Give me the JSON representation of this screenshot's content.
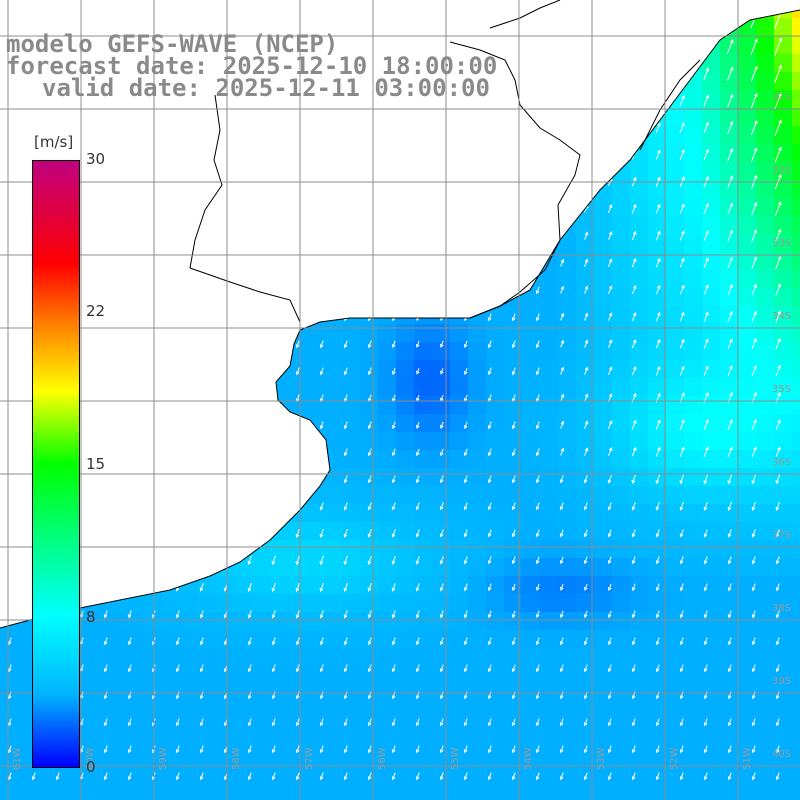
{
  "title": {
    "model": "modelo GEFS-WAVE (NCEP)",
    "forecast": "forecast date: 2025-12-10 18:00:00",
    "valid": "valid date: 2025-12-11 03:00:00"
  },
  "colorbar": {
    "unit": "[m/s]",
    "ticks": [
      "30",
      "22",
      "15",
      "8",
      "0"
    ],
    "ticks_values": [
      30,
      22,
      15,
      8,
      0
    ],
    "range": [
      0,
      30
    ],
    "colors": [
      "#0000ff",
      "#00b4ff",
      "#00ffff",
      "#00ff00",
      "#ffff00",
      "#ff8000",
      "#ff0000",
      "#c00080"
    ]
  },
  "map": {
    "lat_labels": [
      "31S",
      "32S",
      "33S",
      "34S",
      "35S",
      "36S",
      "37S",
      "38S",
      "39S",
      "40S",
      "41S"
    ],
    "lon_labels": [
      "61W",
      "60W",
      "59W",
      "58W",
      "57W",
      "56W",
      "55W",
      "54W",
      "53W",
      "52W",
      "51W"
    ],
    "field": "wind speed with direction arrows",
    "land_color": "#ffffff",
    "grid_color": "#8c8c8c"
  }
}
